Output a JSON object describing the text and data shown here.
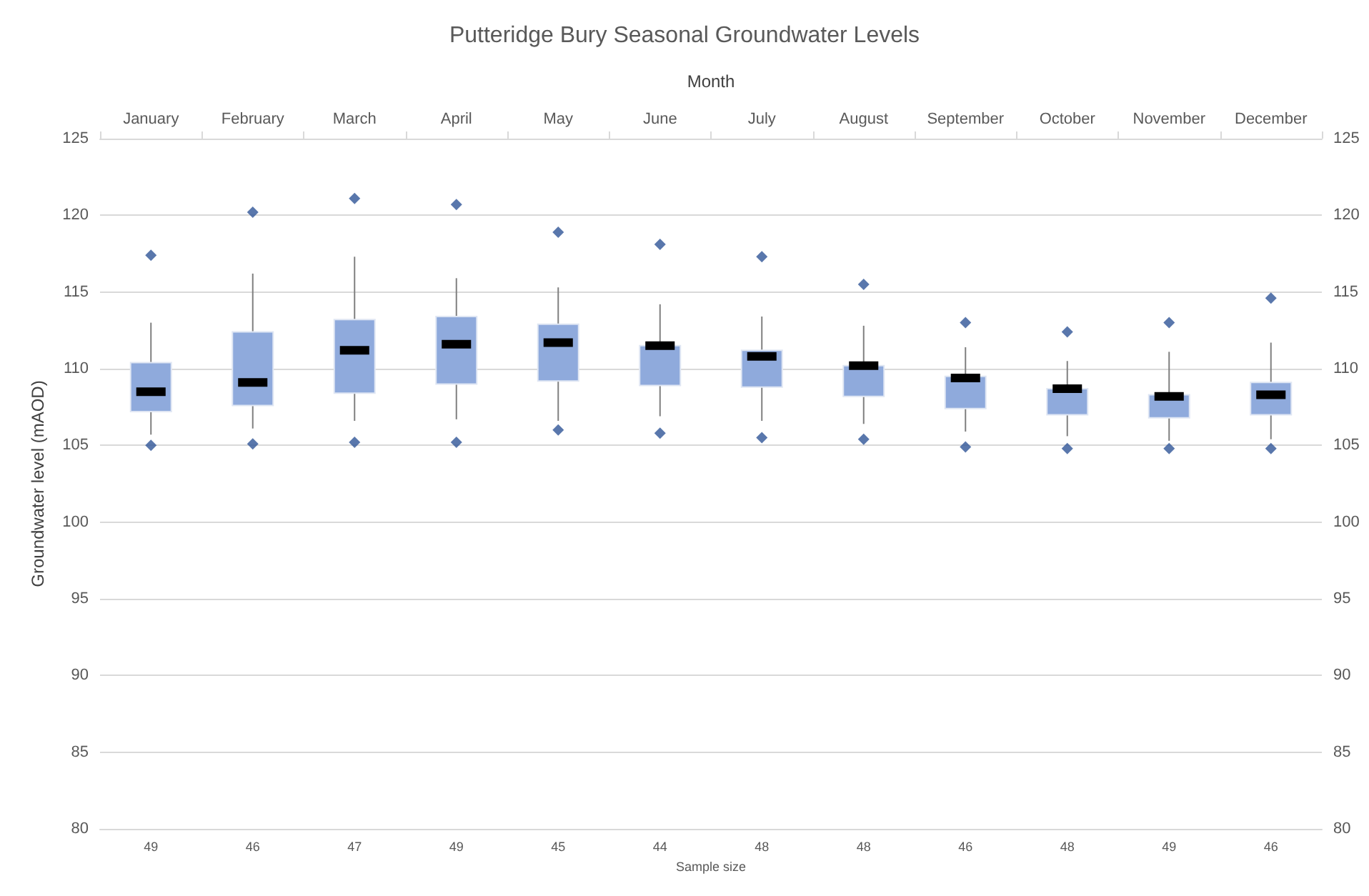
{
  "chart_data": {
    "type": "box",
    "title": "Putteridge Bury Seasonal Groundwater Levels",
    "x2label": "Month",
    "xlabel": "Sample size",
    "ylabel": "Groundwater level (mAOD)",
    "categories": [
      "January",
      "February",
      "March",
      "April",
      "May",
      "June",
      "July",
      "August",
      "September",
      "October",
      "November",
      "December"
    ],
    "series": [
      {
        "color": "#8faadc",
        "boxes": [
          {
            "low": 105.7,
            "q1": 107.2,
            "median": 108.5,
            "q3": 110.4,
            "high": 113.0
          },
          {
            "low": 106.1,
            "q1": 107.6,
            "median": 109.1,
            "q3": 112.4,
            "high": 116.2
          },
          {
            "low": 106.6,
            "q1": 108.4,
            "median": 111.2,
            "q3": 113.2,
            "high": 117.3
          },
          {
            "low": 106.7,
            "q1": 109.0,
            "median": 111.6,
            "q3": 113.4,
            "high": 115.9
          },
          {
            "low": 106.6,
            "q1": 109.2,
            "median": 111.7,
            "q3": 112.9,
            "high": 115.3
          },
          {
            "low": 106.9,
            "q1": 108.9,
            "median": 111.5,
            "q3": 111.5,
            "high": 114.2
          },
          {
            "low": 106.6,
            "q1": 108.8,
            "median": 110.8,
            "q3": 111.2,
            "high": 113.4
          },
          {
            "low": 106.4,
            "q1": 108.2,
            "median": 110.2,
            "q3": 110.2,
            "high": 112.8
          },
          {
            "low": 105.9,
            "q1": 107.4,
            "median": 109.4,
            "q3": 109.5,
            "high": 111.4
          },
          {
            "low": 105.6,
            "q1": 107.0,
            "median": 108.7,
            "q3": 108.7,
            "high": 110.5
          },
          {
            "low": 105.3,
            "q1": 106.8,
            "median": 108.2,
            "q3": 108.3,
            "high": 111.1
          },
          {
            "low": 105.4,
            "q1": 107.0,
            "median": 108.3,
            "q3": 109.1,
            "high": 111.7
          }
        ]
      },
      {
        "type": "scatter",
        "color": "#2f5597",
        "x": [
          "January",
          "January",
          "February",
          "February",
          "March",
          "March",
          "April",
          "April",
          "May",
          "May",
          "June",
          "June",
          "July",
          "July",
          "August",
          "August",
          "September",
          "September",
          "October",
          "October",
          "November",
          "November",
          "December",
          "December"
        ],
        "values": [
          105.0,
          117.4,
          105.1,
          120.2,
          105.2,
          121.1,
          105.2,
          120.7,
          106.0,
          118.9,
          105.8,
          118.1,
          105.5,
          117.3,
          105.4,
          115.5,
          104.9,
          113.0,
          104.8,
          112.4,
          104.8,
          113.0,
          104.8,
          114.6
        ]
      }
    ],
    "annotations": [
      "49",
      "46",
      "47",
      "49",
      "45",
      "44",
      "48",
      "48",
      "46",
      "48",
      "49",
      "46"
    ],
    "ylim": [
      80,
      125
    ],
    "yticks": [
      80,
      85,
      90,
      95,
      100,
      105,
      110,
      115,
      120,
      125
    ],
    "y2lim": [
      80,
      125
    ],
    "y2ticks": [
      80,
      85,
      90,
      95,
      100,
      105,
      110,
      115,
      120,
      125
    ],
    "grid": "y",
    "marker": "diamond"
  }
}
